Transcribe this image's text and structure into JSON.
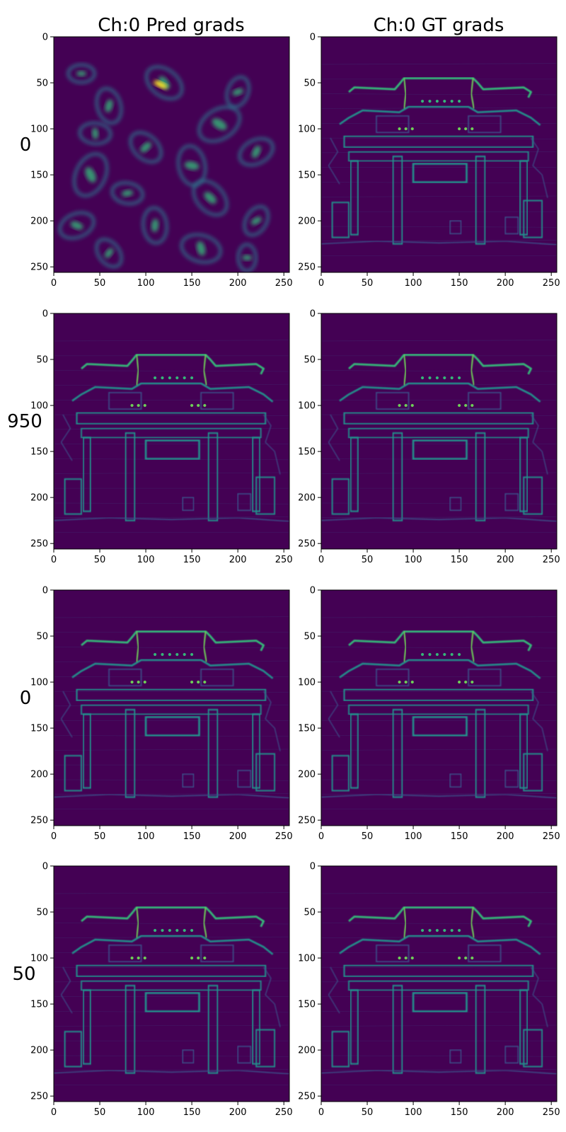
{
  "figure": {
    "column_titles": [
      "Ch:0 Pred grads",
      "Ch:0 GT grads"
    ],
    "row_labels": [
      "0",
      "950",
      "0",
      "50"
    ],
    "colormap": "viridis",
    "background_color": "#440154"
  },
  "chart_data": [
    {
      "type": "heatmap",
      "row": 0,
      "col": 0,
      "title": "Ch:0 Pred grads",
      "row_label": "0",
      "content": "blob-noise",
      "x_ticks": [
        0,
        50,
        100,
        150,
        200,
        250
      ],
      "y_ticks": [
        0,
        50,
        100,
        150,
        200,
        250
      ],
      "xlim": [
        0,
        256
      ],
      "ylim": [
        256,
        0
      ]
    },
    {
      "type": "heatmap",
      "row": 0,
      "col": 1,
      "title": "Ch:0 GT grads",
      "content": "gate-edges",
      "x_ticks": [
        0,
        50,
        100,
        150,
        200,
        250
      ],
      "y_ticks": [
        0,
        50,
        100,
        150,
        200,
        250
      ],
      "xlim": [
        0,
        256
      ],
      "ylim": [
        256,
        0
      ]
    },
    {
      "type": "heatmap",
      "row": 1,
      "col": 0,
      "row_label": "950",
      "content": "gate-edges",
      "x_ticks": [
        0,
        50,
        100,
        150,
        200,
        250
      ],
      "y_ticks": [
        0,
        50,
        100,
        150,
        200,
        250
      ],
      "xlim": [
        0,
        256
      ],
      "ylim": [
        256,
        0
      ]
    },
    {
      "type": "heatmap",
      "row": 1,
      "col": 1,
      "content": "gate-edges",
      "x_ticks": [
        0,
        50,
        100,
        150,
        200,
        250
      ],
      "y_ticks": [
        0,
        50,
        100,
        150,
        200,
        250
      ],
      "xlim": [
        0,
        256
      ],
      "ylim": [
        256,
        0
      ]
    },
    {
      "type": "heatmap",
      "row": 2,
      "col": 0,
      "row_label": "0",
      "content": "gate-edges",
      "x_ticks": [
        0,
        50,
        100,
        150,
        200,
        250
      ],
      "y_ticks": [
        0,
        50,
        100,
        150,
        200,
        250
      ],
      "xlim": [
        0,
        256
      ],
      "ylim": [
        256,
        0
      ]
    },
    {
      "type": "heatmap",
      "row": 2,
      "col": 1,
      "content": "gate-edges",
      "x_ticks": [
        0,
        50,
        100,
        150,
        200,
        250
      ],
      "y_ticks": [
        0,
        50,
        100,
        150,
        200,
        250
      ],
      "xlim": [
        0,
        256
      ],
      "ylim": [
        256,
        0
      ]
    },
    {
      "type": "heatmap",
      "row": 3,
      "col": 0,
      "row_label": "50",
      "content": "gate-edges",
      "x_ticks": [
        0,
        50,
        100,
        150,
        200,
        250
      ],
      "y_ticks": [
        0,
        50,
        100,
        150,
        200,
        250
      ],
      "xlim": [
        0,
        256
      ],
      "ylim": [
        256,
        0
      ]
    },
    {
      "type": "heatmap",
      "row": 3,
      "col": 1,
      "content": "gate-edges",
      "x_ticks": [
        0,
        50,
        100,
        150,
        200,
        250
      ],
      "y_ticks": [
        0,
        50,
        100,
        150,
        200,
        250
      ],
      "xlim": [
        0,
        256
      ],
      "ylim": [
        256,
        0
      ]
    }
  ]
}
